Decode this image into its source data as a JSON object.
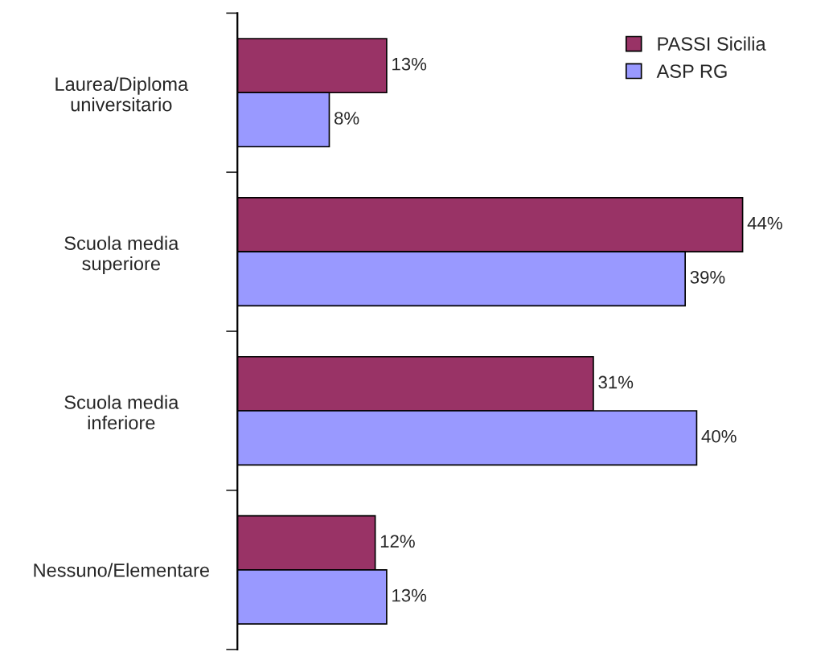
{
  "chart_data": {
    "type": "bar",
    "orientation": "horizontal",
    "categories": [
      "Laurea/Diploma\nuniversitario",
      "Scuola media\nsuperiore",
      "Scuola media\ninferiore",
      "Nessuno/Elementare"
    ],
    "series": [
      {
        "name": "PASSI Sicilia",
        "color": "#993366",
        "values": [
          13,
          44,
          31,
          12
        ],
        "value_labels": [
          "13%",
          "44%",
          "31%",
          "12%"
        ]
      },
      {
        "name": "ASP RG",
        "color": "#9999ff",
        "values": [
          8,
          39,
          40,
          13
        ],
        "value_labels": [
          "8%",
          "39%",
          "40%",
          "13%"
        ]
      }
    ],
    "legend": "top right",
    "grid": false
  }
}
